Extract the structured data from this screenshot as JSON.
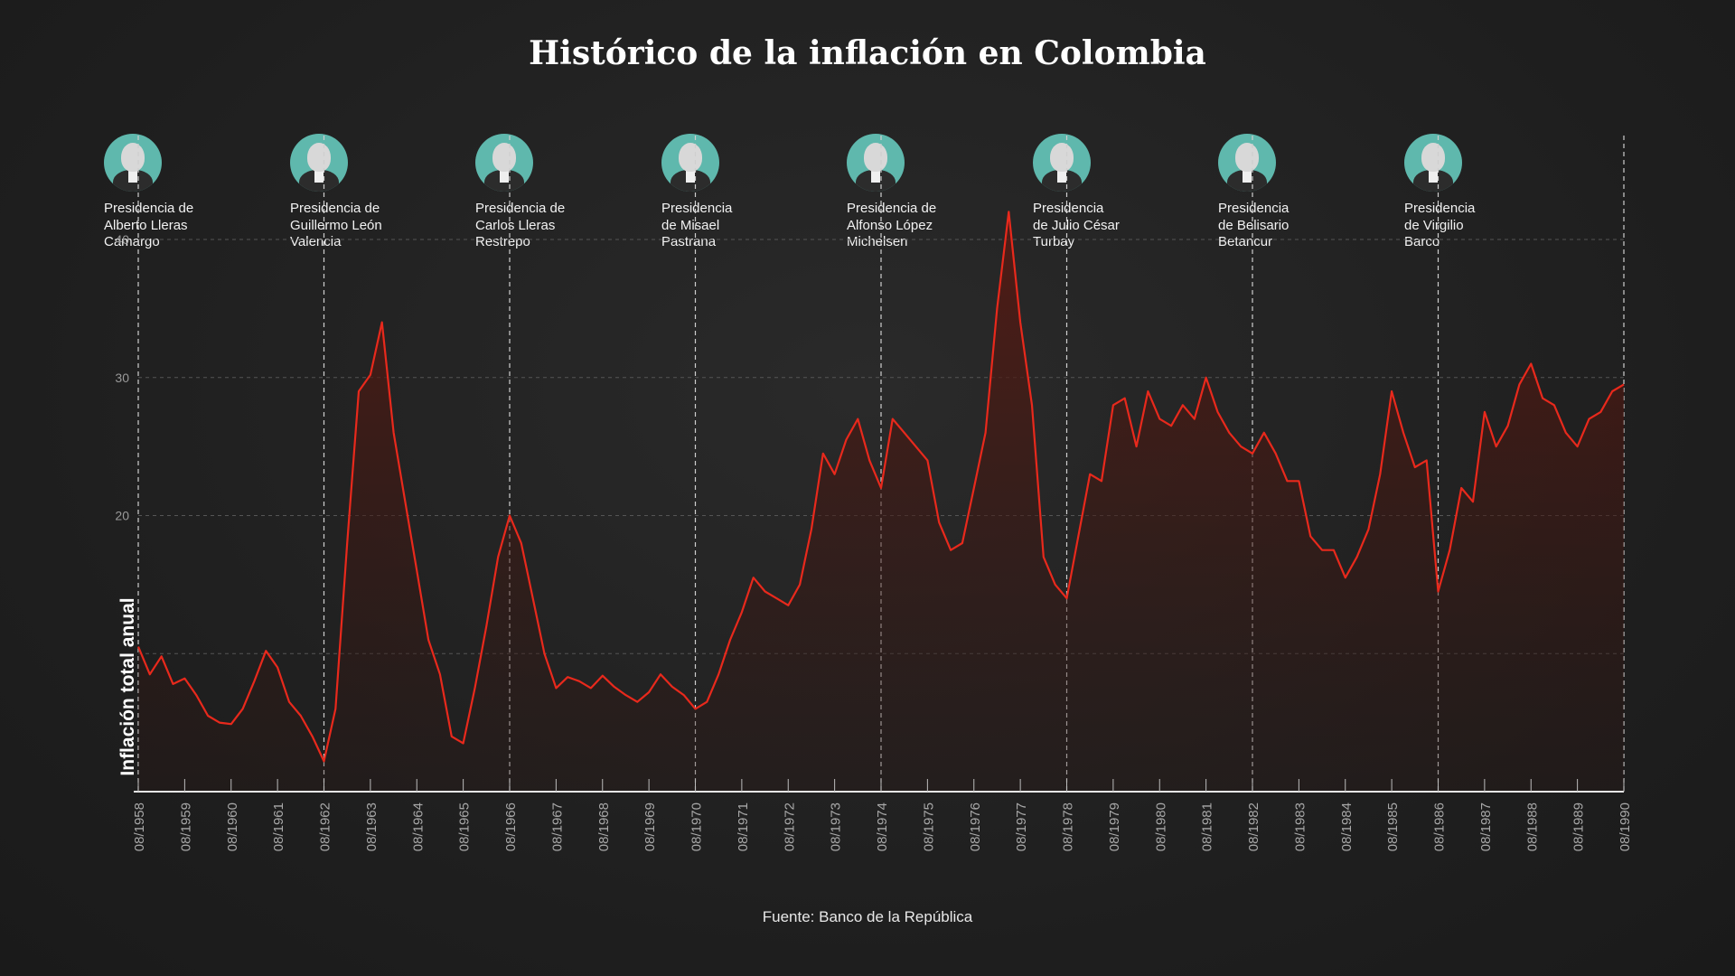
{
  "title": "Histórico de la inflación en Colombia",
  "source": "Fuente: Banco de la República",
  "presidents": [
    {
      "label": "Presidencia de\nAlberto Lleras\nCamargo"
    },
    {
      "label": "Presidencia de\nGuillermo León\nValencia"
    },
    {
      "label": "Presidencia de\nCarlos Lleras\nRestrepo"
    },
    {
      "label": "Presidencia\nde Misael\nPastrana"
    },
    {
      "label": "Presidencia de\nAlfonso López\nMichelsen"
    },
    {
      "label": "Presidencia\nde Julio César\nTurbay"
    },
    {
      "label": "Presidencia\nde Belisario\nBetancur"
    },
    {
      "label": "Presidencia\nde Virgilio\nBarco"
    }
  ],
  "colors": {
    "line": "#e8291c",
    "avatar_bg": "#5fb8ad"
  },
  "chart_data": {
    "type": "area",
    "title": "Histórico de la inflación en Colombia",
    "ylabel": "Inflación total anual",
    "xlabel": "",
    "ylim": [
      0,
      40
    ],
    "yticks": [
      20,
      30,
      40
    ],
    "xticks": [
      "08/1958",
      "08/1959",
      "08/1960",
      "08/1961",
      "08/1962",
      "08/1963",
      "08/1964",
      "08/1965",
      "08/1966",
      "08/1967",
      "08/1968",
      "08/1969",
      "08/1970",
      "08/1971",
      "08/1972",
      "08/1973",
      "08/1974",
      "08/1975",
      "08/1976",
      "08/1977",
      "08/1978",
      "08/1979",
      "08/1980",
      "08/1981",
      "08/1982",
      "08/1983",
      "08/1984",
      "08/1985",
      "08/1986",
      "08/1987",
      "08/1988",
      "08/1989",
      "08/1990"
    ],
    "presidency_starts": [
      "08/1958",
      "08/1962",
      "08/1966",
      "08/1970",
      "08/1974",
      "08/1978",
      "08/1982",
      "08/1986",
      "08/1990"
    ],
    "grid": true,
    "series": [
      {
        "x": [
          "1958-08",
          "1958-11",
          "1959-02",
          "1959-05",
          "1959-08",
          "1959-11",
          "1960-02",
          "1960-05",
          "1960-08",
          "1960-11",
          "1961-02",
          "1961-05",
          "1961-08",
          "1961-11",
          "1962-02",
          "1962-05",
          "1962-08",
          "1962-11",
          "1963-02",
          "1963-05",
          "1963-08",
          "1963-11",
          "1964-02",
          "1964-05",
          "1964-08",
          "1964-11",
          "1965-02",
          "1965-05",
          "1965-08",
          "1965-11",
          "1966-02",
          "1966-05",
          "1966-08",
          "1966-11",
          "1967-02",
          "1967-05",
          "1967-08",
          "1967-11",
          "1968-02",
          "1968-05",
          "1968-08",
          "1968-11",
          "1969-02",
          "1969-05",
          "1969-08",
          "1969-11",
          "1970-02",
          "1970-05",
          "1970-08",
          "1970-11",
          "1971-02",
          "1971-05",
          "1971-08",
          "1971-11",
          "1972-02",
          "1972-05",
          "1972-08",
          "1972-11",
          "1973-02",
          "1973-05",
          "1973-08",
          "1973-11",
          "1974-02",
          "1974-05",
          "1974-08",
          "1974-11",
          "1975-02",
          "1975-05",
          "1975-08",
          "1975-11",
          "1976-02",
          "1976-05",
          "1976-08",
          "1976-11",
          "1977-02",
          "1977-05",
          "1977-08",
          "1977-11",
          "1978-02",
          "1978-05",
          "1978-08",
          "1978-11",
          "1979-02",
          "1979-05",
          "1979-08",
          "1979-11",
          "1980-02",
          "1980-05",
          "1980-08",
          "1980-11",
          "1981-02",
          "1981-05",
          "1981-08",
          "1981-11",
          "1982-02",
          "1982-05",
          "1982-08",
          "1982-11",
          "1983-02",
          "1983-05",
          "1983-08",
          "1983-11",
          "1984-02",
          "1984-05",
          "1984-08",
          "1984-11",
          "1985-02",
          "1985-05",
          "1985-08",
          "1985-11",
          "1986-02",
          "1986-05",
          "1986-08",
          "1986-11",
          "1987-02",
          "1987-05",
          "1987-08",
          "1987-11",
          "1988-02",
          "1988-05",
          "1988-08",
          "1988-11",
          "1989-02",
          "1989-05",
          "1989-08",
          "1989-11",
          "1990-02",
          "1990-05",
          "1990-08"
        ],
        "values": [
          10.5,
          8.5,
          9.8,
          7.8,
          8.2,
          7.0,
          5.5,
          5.0,
          4.9,
          6.0,
          8.0,
          10.2,
          9.0,
          6.5,
          5.5,
          4.0,
          2.2,
          6.0,
          18.0,
          29.0,
          30.2,
          34.0,
          26.0,
          21.0,
          16.0,
          11.0,
          8.5,
          4.0,
          3.5,
          7.5,
          12.0,
          17.0,
          20.0,
          18.0,
          14.0,
          10.0,
          7.5,
          8.3,
          8.0,
          7.5,
          8.4,
          7.6,
          7.0,
          6.5,
          7.2,
          8.5,
          7.6,
          7.0,
          6.0,
          6.5,
          8.5,
          11.0,
          13.0,
          15.5,
          14.5,
          14.0,
          13.5,
          15.0,
          19.0,
          24.5,
          23.0,
          25.5,
          27.0,
          24.0,
          22.0,
          27.0,
          26.0,
          25.0,
          24.0,
          19.5,
          17.5,
          18.0,
          22.0,
          26.0,
          35.0,
          42.0,
          34.0,
          28.0,
          17.0,
          15.0,
          14.0,
          18.5,
          23.0,
          22.5,
          28.0,
          28.5,
          25.0,
          29.0,
          27.0,
          26.5,
          28.0,
          27.0,
          30.0,
          27.5,
          26.0,
          25.0,
          24.5,
          26.0,
          24.5,
          22.5,
          22.5,
          18.5,
          17.5,
          17.5,
          15.5,
          17.0,
          19.0,
          23.0,
          29.0,
          26.0,
          23.5,
          24.0,
          14.5,
          17.5,
          22.0,
          21.0,
          27.5,
          25.0,
          26.5,
          29.5,
          31.0,
          28.5,
          28.0,
          26.0,
          25.0,
          27.0,
          27.5,
          29.0,
          29.5
        ]
      }
    ]
  }
}
